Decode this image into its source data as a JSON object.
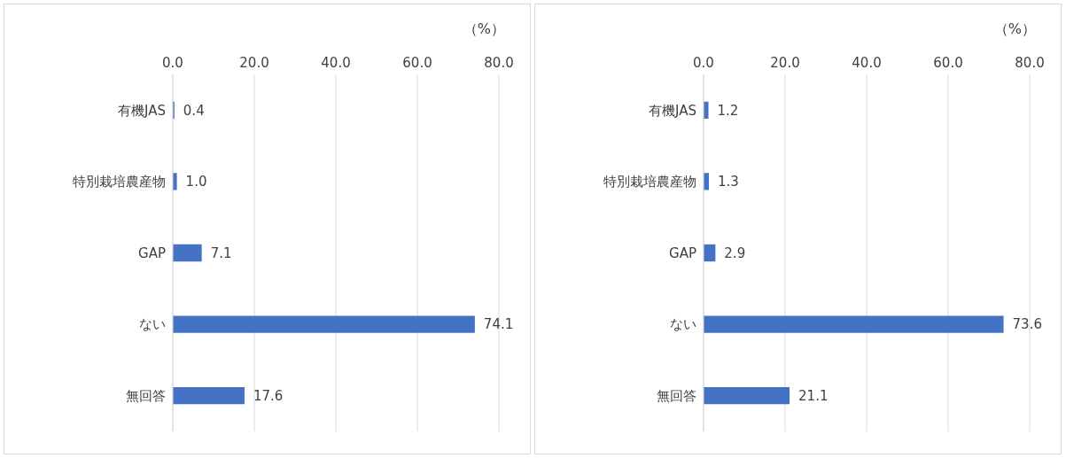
{
  "chart_data": [
    {
      "type": "bar",
      "orientation": "horizontal",
      "xlabel": "（%）",
      "categories": [
        "有機JAS",
        "特別栽培農産物",
        "GAP",
        "ない",
        "無回答"
      ],
      "values": [
        0.4,
        1.0,
        7.1,
        74.1,
        17.6
      ],
      "value_labels": [
        "0.4",
        "1.0",
        "7.1",
        "74.1",
        "17.6"
      ],
      "color": "#4472c4",
      "xlim": [
        0,
        80
      ],
      "xticks": [
        {
          "value": 0,
          "label": "0.0"
        },
        {
          "value": 20,
          "label": "20.0"
        },
        {
          "value": 40,
          "label": "40.0"
        },
        {
          "value": 60,
          "label": "60.0"
        },
        {
          "value": 80,
          "label": "80.0"
        }
      ],
      "grid": "x"
    },
    {
      "type": "bar",
      "orientation": "horizontal",
      "xlabel": "（%）",
      "categories": [
        "有機JAS",
        "特別栽培農産物",
        "GAP",
        "ない",
        "無回答"
      ],
      "values": [
        1.2,
        1.3,
        2.9,
        73.6,
        21.1
      ],
      "value_labels": [
        "1.2",
        "1.3",
        "2.9",
        "73.6",
        "21.1"
      ],
      "color": "#4472c4",
      "xlim": [
        0,
        80
      ],
      "xticks": [
        {
          "value": 0,
          "label": "0.0"
        },
        {
          "value": 20,
          "label": "20.0"
        },
        {
          "value": 40,
          "label": "40.0"
        },
        {
          "value": 60,
          "label": "60.0"
        },
        {
          "value": 80,
          "label": "80.0"
        }
      ],
      "grid": "x"
    }
  ]
}
